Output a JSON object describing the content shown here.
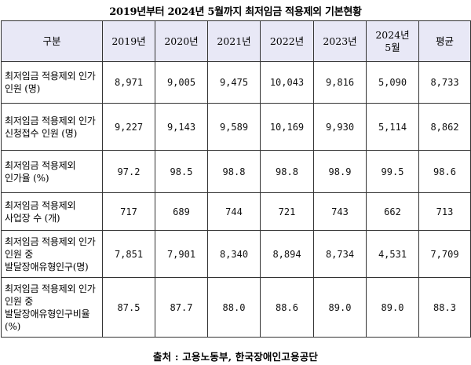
{
  "title": "2019년부터 2024년 5월까지 최저임금 적용제외 기본현황",
  "table": {
    "headers": [
      "구분",
      "2019년",
      "2020년",
      "2021년",
      "2022년",
      "2023년",
      "2024년\n5월",
      "평균"
    ],
    "rows": [
      {
        "label": "최저임금 적용제외 인가 인원 (명)",
        "values": [
          "8,971",
          "9,005",
          "9,475",
          "10,043",
          "9,816",
          "5,090",
          "8,733"
        ]
      },
      {
        "label": "최저임금 적용제외 인가 신청접수 인원 (명)",
        "values": [
          "9,227",
          "9,143",
          "9,589",
          "10,169",
          "9,930",
          "5,114",
          "8,862"
        ]
      },
      {
        "label": "최저임금 적용제외 인가율 (%)",
        "values": [
          "97.2",
          "98.5",
          "98.8",
          "98.8",
          "98.9",
          "99.5",
          "98.6"
        ]
      },
      {
        "label": "최저임금 적용제외 사업장 수 (개)",
        "values": [
          "717",
          "689",
          "744",
          "721",
          "743",
          "662",
          "713"
        ]
      },
      {
        "label": "최저임금 적용제외 인가 인원 중 발달장애유형인구(명)",
        "values": [
          "7,851",
          "7,901",
          "8,340",
          "8,894",
          "8,734",
          "4,531",
          "7,709"
        ]
      },
      {
        "label": "최저임금 적용제외 인가 인원 중 발달장애유형인구비율 (%)",
        "values": [
          "87.5",
          "87.7",
          "88.0",
          "88.6",
          "89.0",
          "89.0",
          "88.3"
        ]
      }
    ]
  },
  "source": "출처 : 고용노동부, 한국장애인고용공단"
}
